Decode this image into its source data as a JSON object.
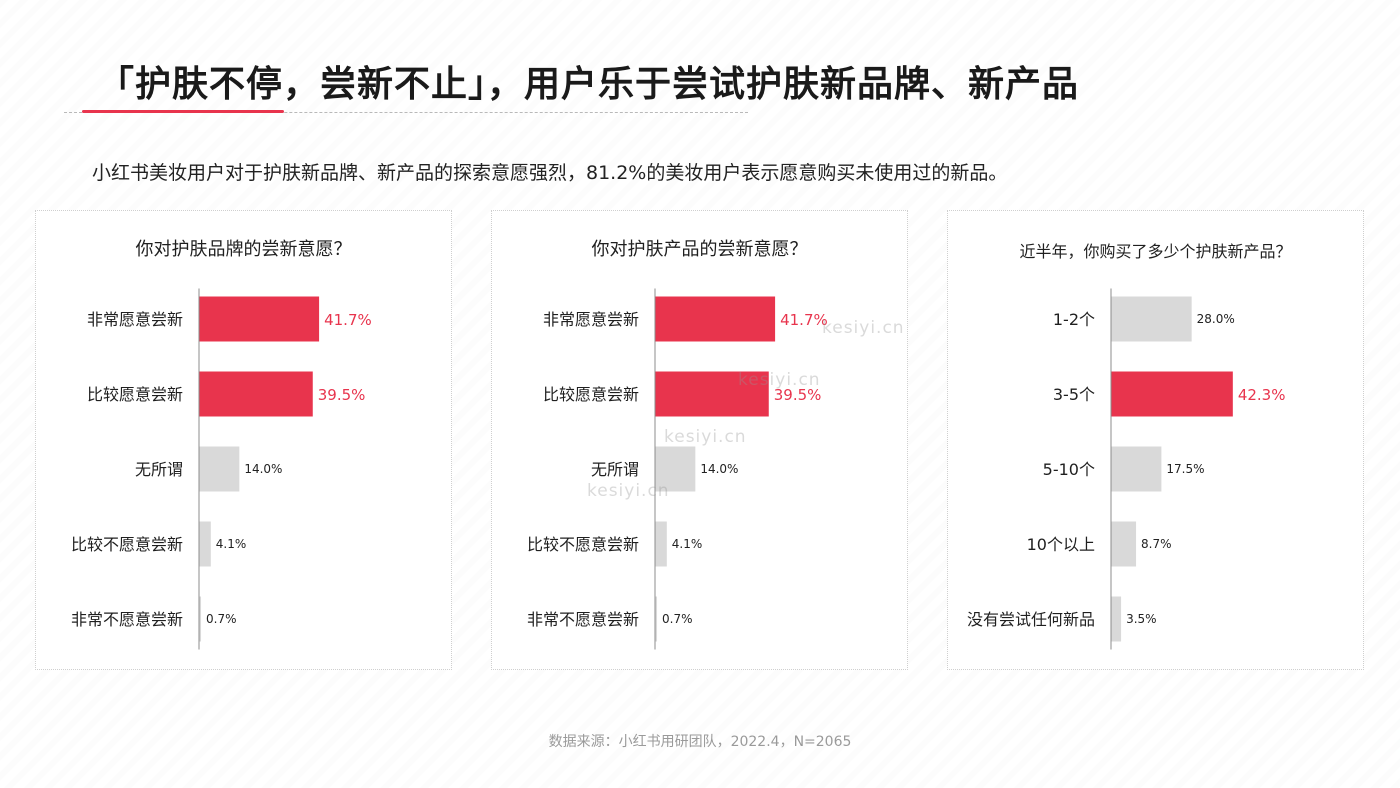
{
  "header": {
    "title": "「护肤不停，尝新不止」，用户乐于尝试护肤新品牌、新产品",
    "subtitle": "小红书美妆用户对于护肤新品牌、新产品的探索意愿强烈，81.2%的美妆用户表示愿意购买未使用过的新品。"
  },
  "footer": {
    "source": "数据来源：小红书用研团队，2022.4，N=2065"
  },
  "watermark": {
    "text": "kesiyi.cn"
  },
  "colors": {
    "highlight": "#e8344d",
    "neutral": "#d9d9d9",
    "axis": "#8c8c8c",
    "label_highlight": "#e8344d",
    "label_neutral": "#222222"
  },
  "chart_data": [
    {
      "type": "bar",
      "orientation": "horizontal",
      "title": "你对护肤品牌的尝新意愿？",
      "categories": [
        "非常愿意尝新",
        "比较愿意尝新",
        "无所谓",
        "比较不愿意尝新",
        "非常不愿意尝新"
      ],
      "values": [
        41.7,
        39.5,
        14.0,
        4.1,
        0.7
      ],
      "value_labels": [
        "41.7%",
        "39.5%",
        "14.0%",
        "4.1%",
        "0.7%"
      ],
      "highlighted": [
        true,
        true,
        false,
        false,
        false
      ],
      "xlim": [
        0,
        100
      ],
      "xlabel": "",
      "ylabel": ""
    },
    {
      "type": "bar",
      "orientation": "horizontal",
      "title": "你对护肤产品的尝新意愿？",
      "categories": [
        "非常愿意尝新",
        "比较愿意尝新",
        "无所谓",
        "比较不愿意尝新",
        "非常不愿意尝新"
      ],
      "values": [
        41.7,
        39.5,
        14.0,
        4.1,
        0.7
      ],
      "value_labels": [
        "41.7%",
        "39.5%",
        "14.0%",
        "4.1%",
        "0.7%"
      ],
      "highlighted": [
        true,
        true,
        false,
        false,
        false
      ],
      "xlim": [
        0,
        100
      ],
      "xlabel": "",
      "ylabel": ""
    },
    {
      "type": "bar",
      "orientation": "horizontal",
      "title": "近半年，你购买了多少个护肤新产品？",
      "categories": [
        "1-2个",
        "3-5个",
        "5-10个",
        "10个以上",
        "没有尝试任何新品"
      ],
      "values": [
        28.0,
        42.3,
        17.5,
        8.7,
        3.5
      ],
      "value_labels": [
        "28.0%",
        "42.3%",
        "17.5%",
        "8.7%",
        "3.5%"
      ],
      "highlighted": [
        false,
        true,
        false,
        false,
        false
      ],
      "xlim": [
        0,
        100
      ],
      "xlabel": "",
      "ylabel": ""
    }
  ]
}
